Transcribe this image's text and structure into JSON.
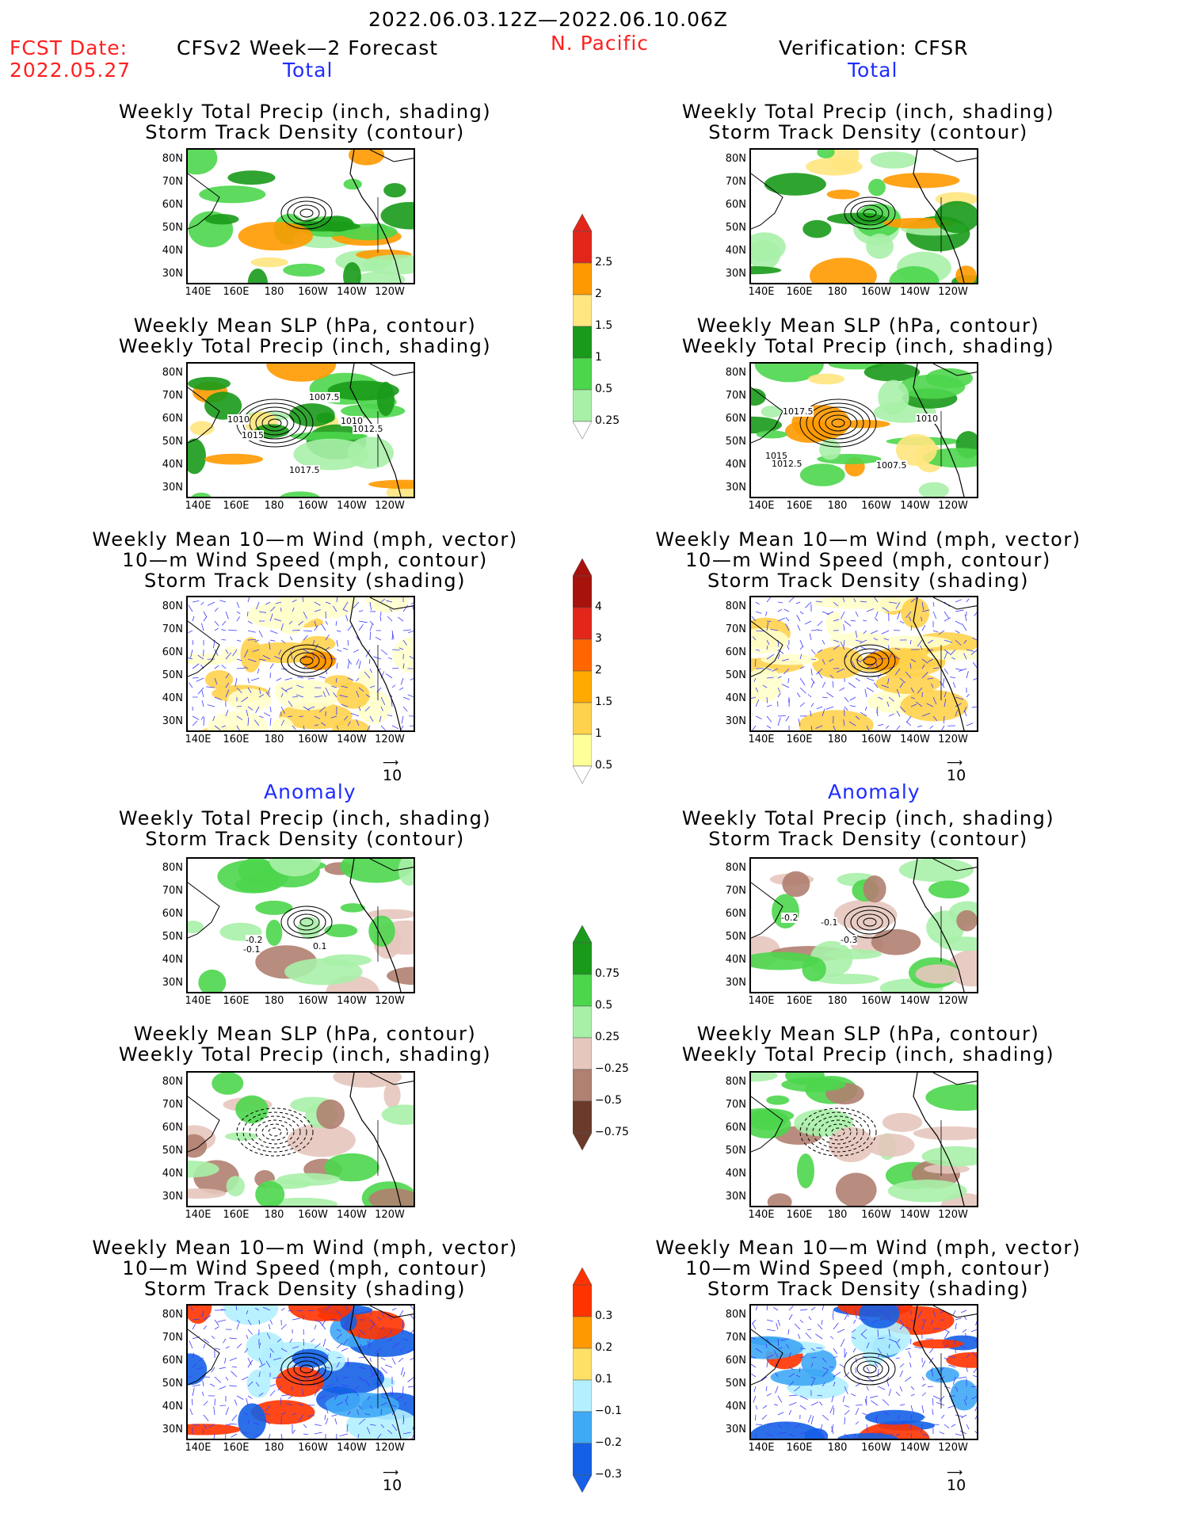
{
  "header": {
    "date_range": "2022.06.03.12Z—2022.06.10.06Z",
    "fcst_label": "FCST Date:",
    "fcst_date": "2022.05.27",
    "forecast_title": "CFSv2 Week—2 Forecast",
    "region": "N. Pacific",
    "verification_title": "Verification: CFSR"
  },
  "sections": {
    "total": "Total",
    "anomaly": "Anomaly"
  },
  "panel_titles": {
    "precip_storm": [
      "Weekly Total Precip (inch, shading)",
      "Storm Track Density (contour)"
    ],
    "slp_precip": [
      "Weekly Mean SLP (hPa, contour)",
      "Weekly Total Precip (inch, shading)"
    ],
    "wind_storm": [
      "Weekly Mean 10—m Wind (mph, vector)",
      "10—m Wind Speed (mph, contour)",
      "Storm Track Density (shading)"
    ]
  },
  "axes": {
    "lat_labels": [
      "80N",
      "70N",
      "60N",
      "50N",
      "40N",
      "30N"
    ],
    "lon_labels": [
      "140E",
      "160E",
      "180",
      "160W",
      "140W",
      "120W"
    ]
  },
  "vector_scale": "10",
  "colorbars": {
    "precip_total": {
      "labels": [
        "2.5",
        "2",
        "1.5",
        "1",
        "0.5",
        "0.25"
      ],
      "colors": [
        "#e2261a",
        "#ff9900",
        "#ffe680",
        "#1a9a1a",
        "#4cd64c",
        "#a8f0a8"
      ]
    },
    "storm_total": {
      "labels": [
        "4",
        "3",
        "2",
        "1.5",
        "1",
        "0.5"
      ],
      "colors": [
        "#a8120c",
        "#e2261a",
        "#ff6600",
        "#ffaa00",
        "#ffd24d",
        "#ffff99"
      ]
    },
    "precip_anom": {
      "labels": [
        "0.75",
        "0.5",
        "0.25",
        "−0.25",
        "−0.5",
        "−0.75"
      ],
      "colors": [
        "#1a9a1a",
        "#4cd64c",
        "#a8f0a8",
        "#e6c7bd",
        "#b08070",
        "#6b3a2a"
      ]
    },
    "storm_anom": {
      "labels": [
        "0.3",
        "0.2",
        "0.1",
        "−0.1",
        "−0.2",
        "−0.3"
      ],
      "colors": [
        "#ff3300",
        "#ff9900",
        "#ffe066",
        "#b3f0ff",
        "#3fa9f5",
        "#1460e6"
      ]
    }
  },
  "contour_labels": {
    "fc_slp": [
      "1007.5",
      "1010",
      "1015",
      "1010",
      "1012.5",
      "1017.5"
    ],
    "ob_slp": [
      "1017.5",
      "1010",
      "1015",
      "1012.5",
      "1007.5"
    ],
    "fc_precip_anom": [
      "-0.2",
      "-0.1",
      "0.1"
    ],
    "ob_precip_anom": [
      "-0.2",
      "-0.1",
      "-0.3"
    ]
  }
}
